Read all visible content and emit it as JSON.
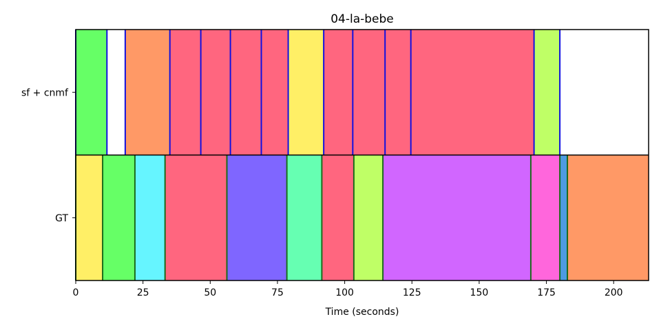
{
  "chart_data": {
    "type": "segmentation-timeline",
    "title": "04-la-bebe",
    "xlabel": "Time (seconds)",
    "ylabel": "",
    "xlim": [
      0,
      213
    ],
    "xticks": [
      0,
      25,
      50,
      75,
      100,
      125,
      150,
      175,
      200
    ],
    "grid": false,
    "rows": [
      {
        "name": "sf + cnmf",
        "boundary_color": "#1010e0",
        "segments": [
          {
            "start": 0,
            "end": 11.6,
            "color": "#66ff66"
          },
          {
            "start": 11.6,
            "end": 18.4,
            "color": "#ffffff"
          },
          {
            "start": 18.4,
            "end": 35,
            "color": "#ff9966"
          },
          {
            "start": 35,
            "end": 46.5,
            "color": "#ff667f"
          },
          {
            "start": 46.5,
            "end": 57.5,
            "color": "#ff667f"
          },
          {
            "start": 57.5,
            "end": 69,
            "color": "#ff667f"
          },
          {
            "start": 69,
            "end": 79,
            "color": "#ff667f"
          },
          {
            "start": 79,
            "end": 92.2,
            "color": "#ffef66"
          },
          {
            "start": 92.2,
            "end": 103,
            "color": "#ff667f"
          },
          {
            "start": 103,
            "end": 115,
            "color": "#ff667f"
          },
          {
            "start": 115,
            "end": 124.6,
            "color": "#ff667f"
          },
          {
            "start": 124.6,
            "end": 170.4,
            "color": "#ff667f"
          },
          {
            "start": 170.4,
            "end": 180,
            "color": "#bfff66"
          },
          {
            "start": 180,
            "end": 213,
            "color": "#ffffff"
          }
        ],
        "boundaries": [
          0,
          11.6,
          18.4,
          35,
          46.5,
          57.5,
          69,
          79,
          92.2,
          103,
          115,
          124.6,
          170.4,
          180
        ]
      },
      {
        "name": "GT",
        "boundary_color": "#1a6b1a",
        "segments": [
          {
            "start": 0,
            "end": 10,
            "color": "#ffef66"
          },
          {
            "start": 10,
            "end": 22,
            "color": "#66ff66"
          },
          {
            "start": 22,
            "end": 33.2,
            "color": "#66f5ff"
          },
          {
            "start": 33.2,
            "end": 56.2,
            "color": "#ff667f"
          },
          {
            "start": 56.2,
            "end": 78.5,
            "color": "#7f66ff"
          },
          {
            "start": 78.5,
            "end": 91.5,
            "color": "#66ffb2"
          },
          {
            "start": 91.5,
            "end": 103.4,
            "color": "#ff667f"
          },
          {
            "start": 103.4,
            "end": 114.2,
            "color": "#bfff66"
          },
          {
            "start": 114.2,
            "end": 169.2,
            "color": "#d166ff"
          },
          {
            "start": 169.2,
            "end": 180,
            "color": "#ff66dc"
          },
          {
            "start": 180,
            "end": 182.8,
            "color": "#4d9be0"
          },
          {
            "start": 182.8,
            "end": 213,
            "color": "#ff9966"
          }
        ],
        "boundaries": [
          0,
          10,
          22,
          33.2,
          56.2,
          78.5,
          91.5,
          103.4,
          114.2,
          169.2,
          180,
          182.8
        ]
      }
    ]
  }
}
